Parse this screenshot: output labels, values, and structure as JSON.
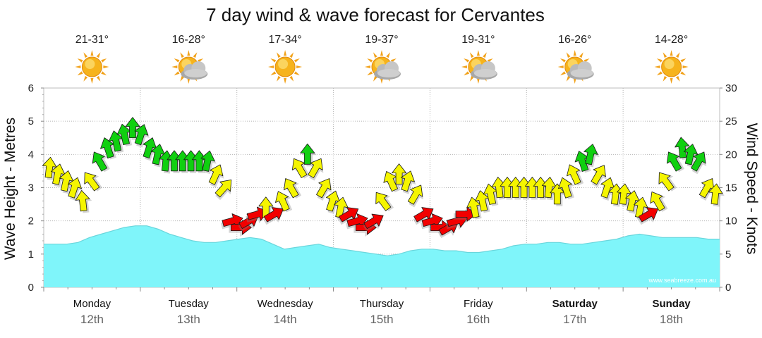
{
  "chart_data": {
    "type": "area",
    "title": "7 day wind & wave forecast for Cervantes",
    "ylabel_left": "Wave Height - Metres",
    "ylabel_right": "Wind Speed - Knots",
    "yleft_ticks": [
      "0",
      "1",
      "2",
      "3",
      "4",
      "5",
      "6"
    ],
    "yright_ticks": [
      "0",
      "5",
      "10",
      "15",
      "20",
      "25",
      "30"
    ],
    "ylim_left": [
      0,
      6
    ],
    "ylim_right": [
      0,
      30
    ],
    "watermark": "www.seabreeze.com.au",
    "days": [
      {
        "name": "Monday",
        "date": "12th",
        "temp": "21-31°",
        "weather": "sunny",
        "bold": false
      },
      {
        "name": "Tuesday",
        "date": "13th",
        "temp": "16-28°",
        "weather": "partly-cloudy",
        "bold": false
      },
      {
        "name": "Wednesday",
        "date": "14th",
        "temp": "17-34°",
        "weather": "sunny",
        "bold": false
      },
      {
        "name": "Thursday",
        "date": "15th",
        "temp": "19-37°",
        "weather": "partly-cloudy",
        "bold": false
      },
      {
        "name": "Friday",
        "date": "16th",
        "temp": "19-31°",
        "weather": "partly-cloudy",
        "bold": false
      },
      {
        "name": "Saturday",
        "date": "17th",
        "temp": "16-26°",
        "weather": "partly-cloudy",
        "bold": true
      },
      {
        "name": "Sunday",
        "date": "18th",
        "temp": "14-28°",
        "weather": "sunny",
        "bold": true
      }
    ],
    "wave_height_m": [
      1.3,
      1.3,
      1.3,
      1.35,
      1.5,
      1.6,
      1.7,
      1.8,
      1.85,
      1.85,
      1.75,
      1.6,
      1.5,
      1.4,
      1.35,
      1.35,
      1.4,
      1.45,
      1.5,
      1.45,
      1.3,
      1.15,
      1.2,
      1.25,
      1.3,
      1.2,
      1.15,
      1.1,
      1.05,
      1.0,
      0.95,
      1.0,
      1.1,
      1.15,
      1.15,
      1.1,
      1.1,
      1.05,
      1.05,
      1.1,
      1.15,
      1.25,
      1.3,
      1.3,
      1.35,
      1.35,
      1.3,
      1.3,
      1.35,
      1.4,
      1.45,
      1.55,
      1.6,
      1.55,
      1.5,
      1.5,
      1.5,
      1.5,
      1.45,
      1.45
    ],
    "wind_knots": [
      18,
      17,
      16,
      15,
      13,
      16,
      19,
      21,
      22,
      23,
      24,
      23,
      21,
      20,
      19,
      19,
      19,
      19,
      19,
      19,
      17,
      15,
      10,
      9,
      10,
      11,
      12,
      11,
      13,
      15,
      18,
      20,
      18,
      15,
      13,
      12,
      11,
      10,
      9,
      10,
      13,
      16,
      17,
      16,
      14,
      11,
      10,
      9,
      9,
      10,
      11,
      12,
      13,
      14,
      15,
      15,
      15,
      15,
      15,
      15,
      15,
      14,
      15,
      17,
      19,
      20,
      17,
      15,
      14,
      14,
      13,
      12,
      11,
      13,
      16,
      19,
      21,
      20,
      19,
      15,
      14
    ]
  },
  "wind_colors": {
    "strong": "#f20000",
    "moderate": "#f5f500",
    "light": "#10d010"
  },
  "wave_fill": "#7ff5fa",
  "wave_stroke": "#6ad6dc"
}
